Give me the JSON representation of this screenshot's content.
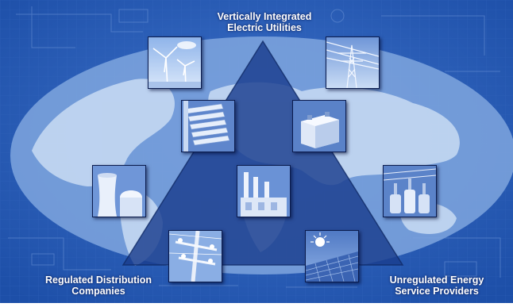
{
  "colors": {
    "background": "#1d4fa8",
    "globe": "#7fa6de",
    "continents": "#c4d8f2",
    "triangle": "#1a3d8e",
    "tile_frame": "#0b1c4e",
    "label_text": "#ffffff"
  },
  "labels": {
    "top_line1": "Vertically Integrated",
    "top_line2": "Electric Utilities",
    "bottom_left_line1": "Regulated Distribution",
    "bottom_left_line2": "Companies",
    "bottom_right_line1": "Unregulated Energy",
    "bottom_right_line2": "Service Providers"
  },
  "tiles": [
    {
      "icon": "wind-turbines-icon"
    },
    {
      "icon": "transmission-tower-icon"
    },
    {
      "icon": "turbine-blades-icon"
    },
    {
      "icon": "battery-icon"
    },
    {
      "icon": "cooling-tower-icon"
    },
    {
      "icon": "power-plant-icon"
    },
    {
      "icon": "transformer-icon"
    },
    {
      "icon": "utility-pole-icon"
    },
    {
      "icon": "solar-panel-icon"
    }
  ]
}
